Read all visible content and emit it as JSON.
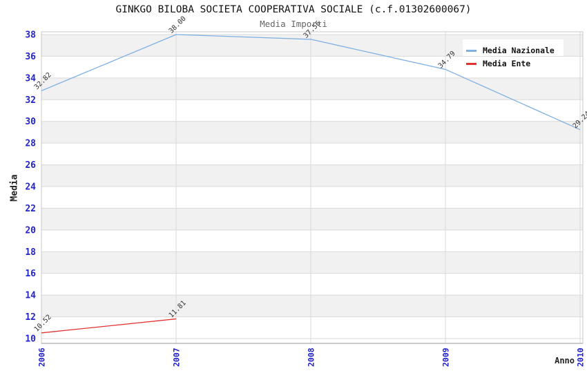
{
  "chart_data": {
    "type": "line",
    "title": "GINKGO BILOBA SOCIETA COOPERATIVA SOCIALE (c.f.01302600067)",
    "subtitle": "Media Importi",
    "xlabel": "Anno",
    "ylabel": "Media",
    "x": [
      "2006",
      "2007",
      "2008",
      "2009",
      "2010"
    ],
    "y_ticks": [
      38,
      36,
      34,
      32,
      30,
      28,
      26,
      24,
      22,
      20,
      18,
      16,
      14,
      12,
      10
    ],
    "ylim": [
      10,
      38
    ],
    "grid": true,
    "striped_background": true,
    "legend_position": "top-right",
    "series": [
      {
        "name": "Media Nazionale",
        "color": "#7fb0e2",
        "values": [
          32.82,
          38.0,
          37.56,
          34.79,
          29.24
        ],
        "point_labels": [
          "32.82",
          "38.00",
          "37.56",
          "34.79",
          "29.24"
        ]
      },
      {
        "name": "Media Ente",
        "color": "#e23333",
        "values": [
          10.52,
          11.81,
          null,
          null,
          null
        ],
        "point_labels": [
          "10.52",
          "11.81"
        ]
      }
    ]
  },
  "legend": [
    {
      "label": "Media Nazionale",
      "color": "#7fb0e2"
    },
    {
      "label": "Media Ente",
      "color": "#e23333"
    }
  ],
  "colors": {
    "axis_tick": "#2323cc",
    "grid_line": "#d9d9d9",
    "band": "#f1f1f1",
    "plot_border": "#c8c8c8",
    "plot_border_bottom": "#999999",
    "title": "#111111",
    "subtitle": "#666666",
    "data_label": "#333333",
    "background": "#ffffff"
  }
}
